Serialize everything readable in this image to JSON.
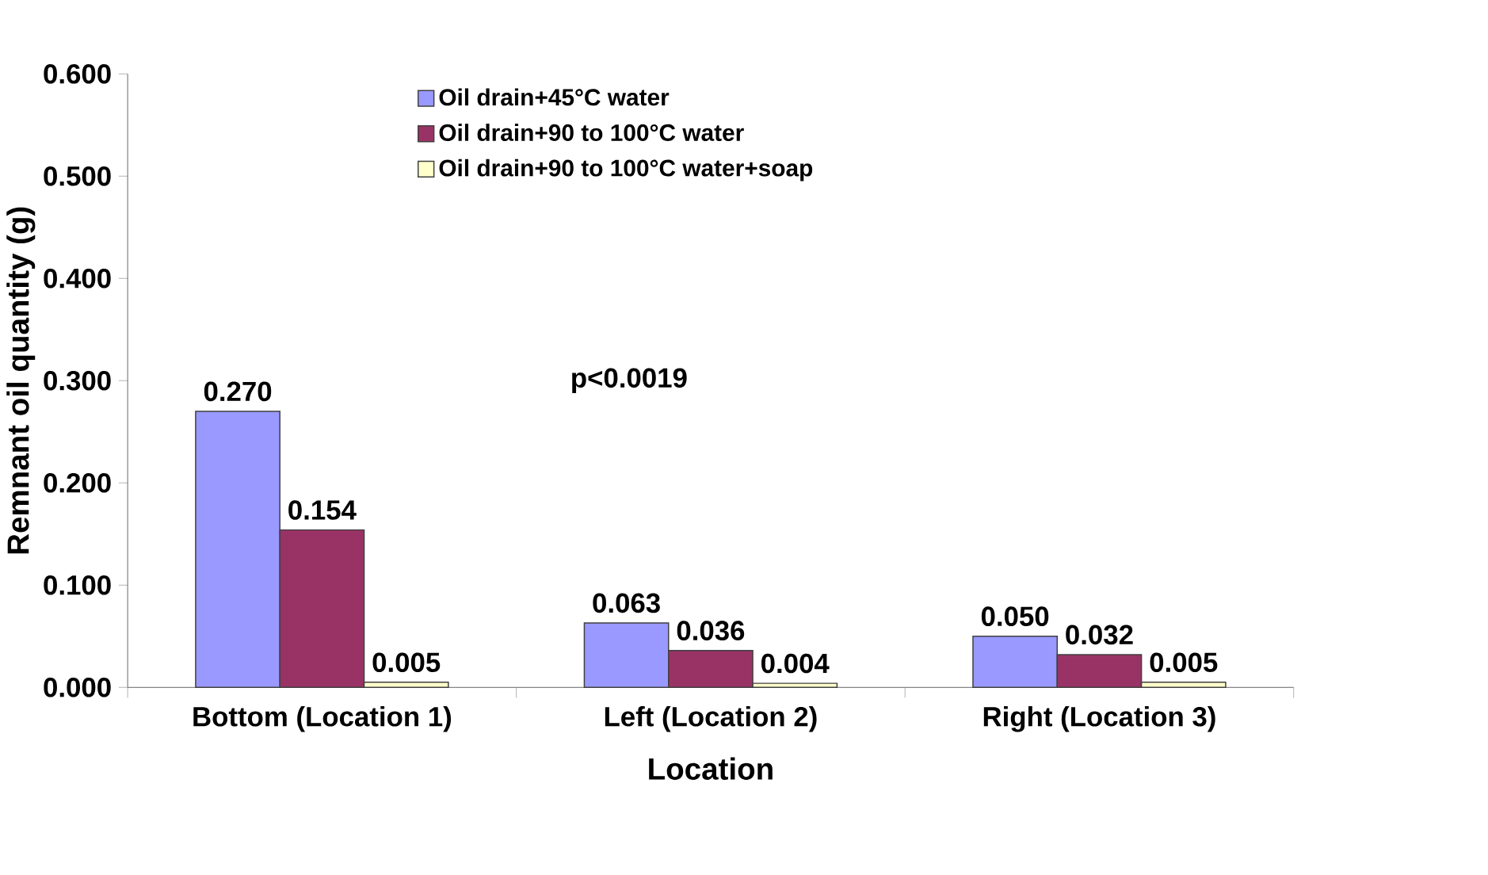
{
  "chart_data": {
    "type": "bar",
    "xlabel": "Location",
    "ylabel": "Remnant oil quantity (g)",
    "categories": [
      "Bottom (Location 1)",
      "Left (Location 2)",
      "Right (Location 3)"
    ],
    "series": [
      {
        "name": "Oil drain+45°C water",
        "color": "#9999ff",
        "values": [
          0.27,
          0.063,
          0.05
        ],
        "value_labels": [
          "0.270",
          "0.063",
          "0.050"
        ]
      },
      {
        "name": "Oil drain+90 to 100°C water",
        "color": "#993366",
        "values": [
          0.154,
          0.036,
          0.032
        ],
        "value_labels": [
          "0.154",
          "0.036",
          "0.032"
        ]
      },
      {
        "name": "Oil drain+90 to 100°C water+soap",
        "color": "#ffffcc",
        "values": [
          0.005,
          0.004,
          0.005
        ],
        "value_labels": [
          "0.005",
          "0.004",
          "0.005"
        ]
      }
    ],
    "ylim": [
      0,
      0.6
    ],
    "yticks": [
      {
        "value": 0,
        "label": "0.000"
      },
      {
        "value": 0.1,
        "label": "0.100"
      },
      {
        "value": 0.2,
        "label": "0.200"
      },
      {
        "value": 0.3,
        "label": "0.300"
      },
      {
        "value": 0.4,
        "label": "0.400"
      },
      {
        "value": 0.5,
        "label": "0.500"
      },
      {
        "value": 0.6,
        "label": "0.600"
      }
    ],
    "annotations": [
      "p<0.0019"
    ],
    "legend": "top",
    "grid": false
  }
}
